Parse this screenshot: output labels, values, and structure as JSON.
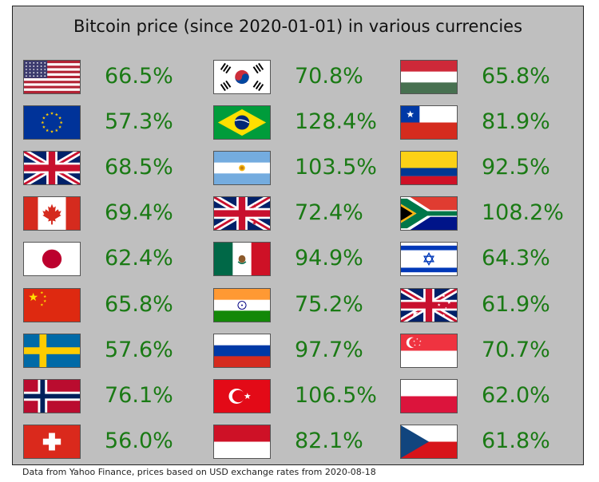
{
  "title": "Bitcoin price (since 2020-01-01) in various currencies",
  "footnote": "Data from Yahoo Finance, prices based on USD exchange rates from 2020-08-18",
  "value_color": "#1a7a14",
  "background_color": "#bfbfbf",
  "chart_data": {
    "type": "table",
    "title": "Bitcoin price (since 2020-01-01) in various currencies",
    "columns": 3,
    "rows": 9,
    "unit": "%",
    "categories": [
      "us-flag-icon",
      "eu-flag-icon",
      "uk-flag-icon",
      "canada-flag-icon",
      "japan-flag-icon",
      "china-flag-icon",
      "sweden-flag-icon",
      "norway-flag-icon",
      "switzerland-flag-icon",
      "south-korea-flag-icon",
      "brazil-flag-icon",
      "argentina-flag-icon",
      "new-zealand-flag-icon",
      "mexico-flag-icon",
      "india-flag-icon",
      "russia-flag-icon",
      "turkey-flag-icon",
      "indonesia-flag-icon",
      "hungary-flag-icon",
      "chile-flag-icon",
      "colombia-flag-icon",
      "south-africa-flag-icon",
      "israel-flag-icon",
      "australia-flag-icon",
      "singapore-flag-icon",
      "poland-flag-icon",
      "czech-flag-icon"
    ],
    "values": [
      66.5,
      57.3,
      68.5,
      69.4,
      62.4,
      65.8,
      57.6,
      76.1,
      56.0,
      70.8,
      128.4,
      103.5,
      72.4,
      94.9,
      75.2,
      97.7,
      106.5,
      82.1,
      65.8,
      81.9,
      92.5,
      108.2,
      64.3,
      61.9,
      70.7,
      62.0,
      61.8
    ],
    "labels": [
      "66.5%",
      "57.3%",
      "68.5%",
      "69.4%",
      "62.4%",
      "65.8%",
      "57.6%",
      "76.1%",
      "56.0%",
      "70.8%",
      "128.4%",
      "103.5%",
      "72.4%",
      "94.9%",
      "75.2%",
      "97.7%",
      "106.5%",
      "82.1%",
      "65.8%",
      "81.9%",
      "92.5%",
      "108.2%",
      "64.3%",
      "61.9%",
      "70.7%",
      "62.0%",
      "61.8%"
    ]
  }
}
